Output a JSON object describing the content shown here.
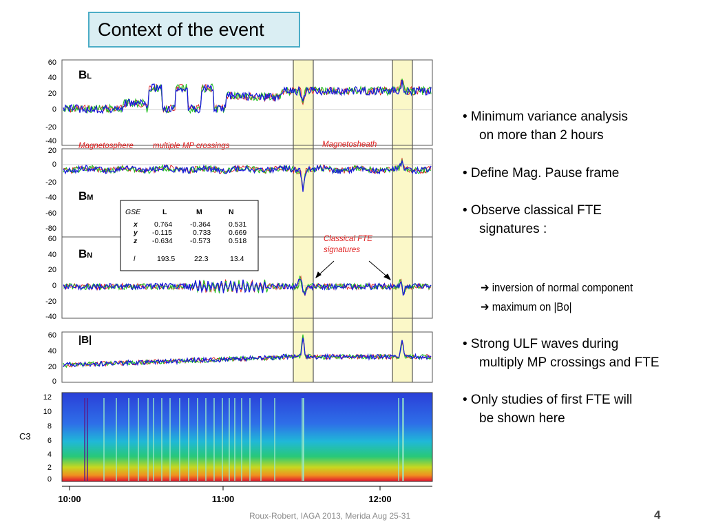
{
  "slide": {
    "title": "Context of the event",
    "footer": "Roux-Robert, IAGA 2013, Merida Aug 25-31",
    "page_number": "4"
  },
  "bullets": [
    {
      "line1": "• Minimum variance analysis",
      "line2": "on more than 2 hours"
    },
    {
      "line1": "• Define Mag. Pause frame",
      "line2": ""
    },
    {
      "line1": "• Observe classical FTE",
      "line2": "signatures :"
    },
    {
      "line1": "• Strong ULF waves during",
      "line2": "multiply MP crossings and FTE"
    },
    {
      "line1": "• Only studies of first FTE will",
      "line2": "be shown here"
    }
  ],
  "sub_bullets": [
    {
      "arrow": "➔",
      "text": "inversion of normal component"
    },
    {
      "arrow": "➔",
      "text": "maximum on |Bo|"
    }
  ],
  "figure": {
    "panels": [
      {
        "name": "BL",
        "label_main": "B",
        "label_sub": "L",
        "yticks": [
          "60",
          "40",
          "20",
          "0",
          "-20",
          "-40"
        ]
      },
      {
        "name": "BM",
        "label_main": "B",
        "label_sub": "M",
        "yticks": [
          "20",
          "0",
          "-20",
          "-40",
          "-60",
          "-80"
        ]
      },
      {
        "name": "BN",
        "label_main": "B",
        "label_sub": "N",
        "yticks": [
          "60",
          "40",
          "20",
          "0",
          "-20",
          "-40"
        ]
      },
      {
        "name": "B",
        "label_main": "|B|",
        "label_sub": "",
        "yticks": [
          "60",
          "40",
          "20",
          "0"
        ]
      }
    ],
    "spectrogram": {
      "label": "C3",
      "yticks": [
        "12",
        "10",
        "8",
        "6",
        "4",
        "2",
        "0"
      ]
    },
    "xticks": [
      "10:00",
      "11:00",
      "12:00"
    ],
    "annotations": {
      "magnetosphere": "Magnetosphere",
      "mp_crossings": "multiple MP crossings",
      "magnetosheath": "Magnetosheath",
      "fte_line1": "Classical  FTE",
      "fte_line2": "signatures"
    },
    "gse_table": {
      "headers": [
        "GSE",
        "L",
        "M",
        "N"
      ],
      "rows": [
        {
          "axis": "x",
          "L": "0.764",
          "M": "-0.364",
          "N": "0.531"
        },
        {
          "axis": "y",
          "L": "-0.115",
          "M": "0.733",
          "N": "0.669"
        },
        {
          "axis": "z",
          "L": "-0.634",
          "M": "-0.573",
          "N": "0.518"
        },
        {
          "axis": "l",
          "L": "193.5",
          "M": "22.3",
          "N": "13.4"
        }
      ]
    },
    "colors": {
      "series_blue": "#1a1adc",
      "series_green": "#22c022",
      "series_red": "#dd2222",
      "highlight": "#fbf8c8",
      "annotation": "#e02020"
    }
  }
}
